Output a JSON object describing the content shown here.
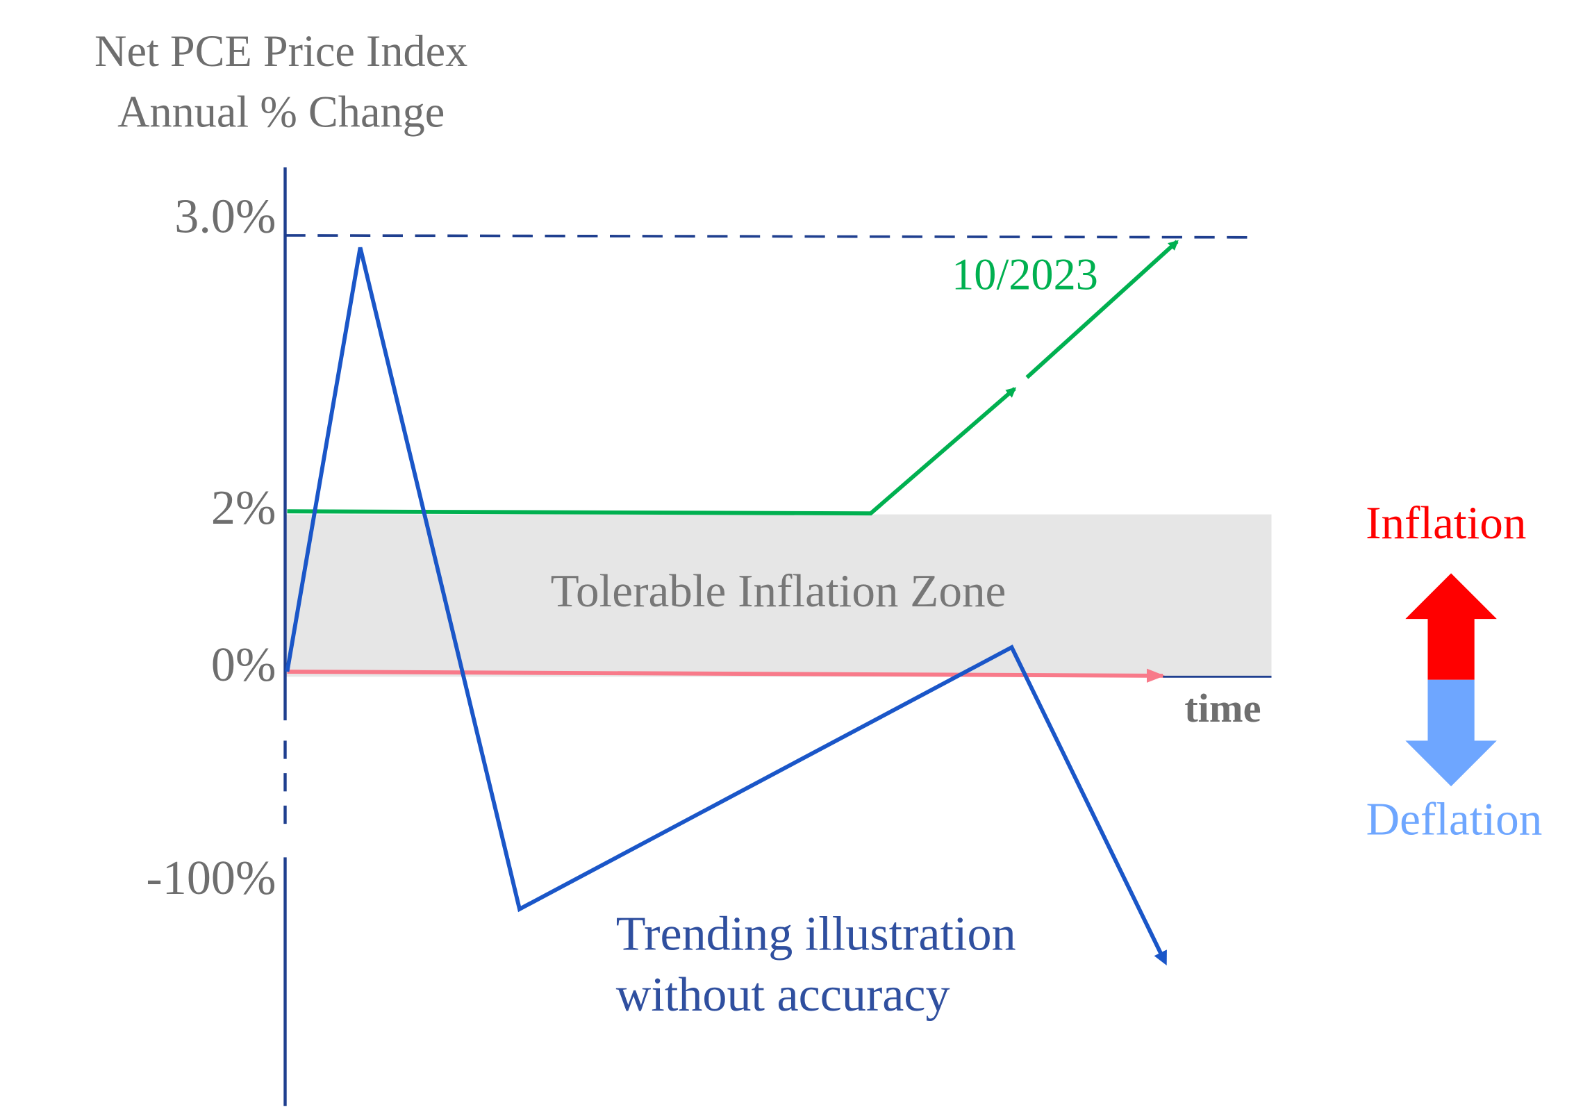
{
  "title": {
    "line1": "Net PCE Price Index",
    "line2": "Annual % Change"
  },
  "axis": {
    "labels": [
      "3.0%",
      "2%",
      "0%",
      "-100%"
    ],
    "x_label": "time"
  },
  "zone": {
    "label": "Tolerable Inflation Zone"
  },
  "annotations": {
    "date": "10/2023",
    "note_line1": "Trending illustration",
    "note_line2": "without accuracy"
  },
  "legend": {
    "up": "Inflation",
    "down": "Deflation"
  }
}
